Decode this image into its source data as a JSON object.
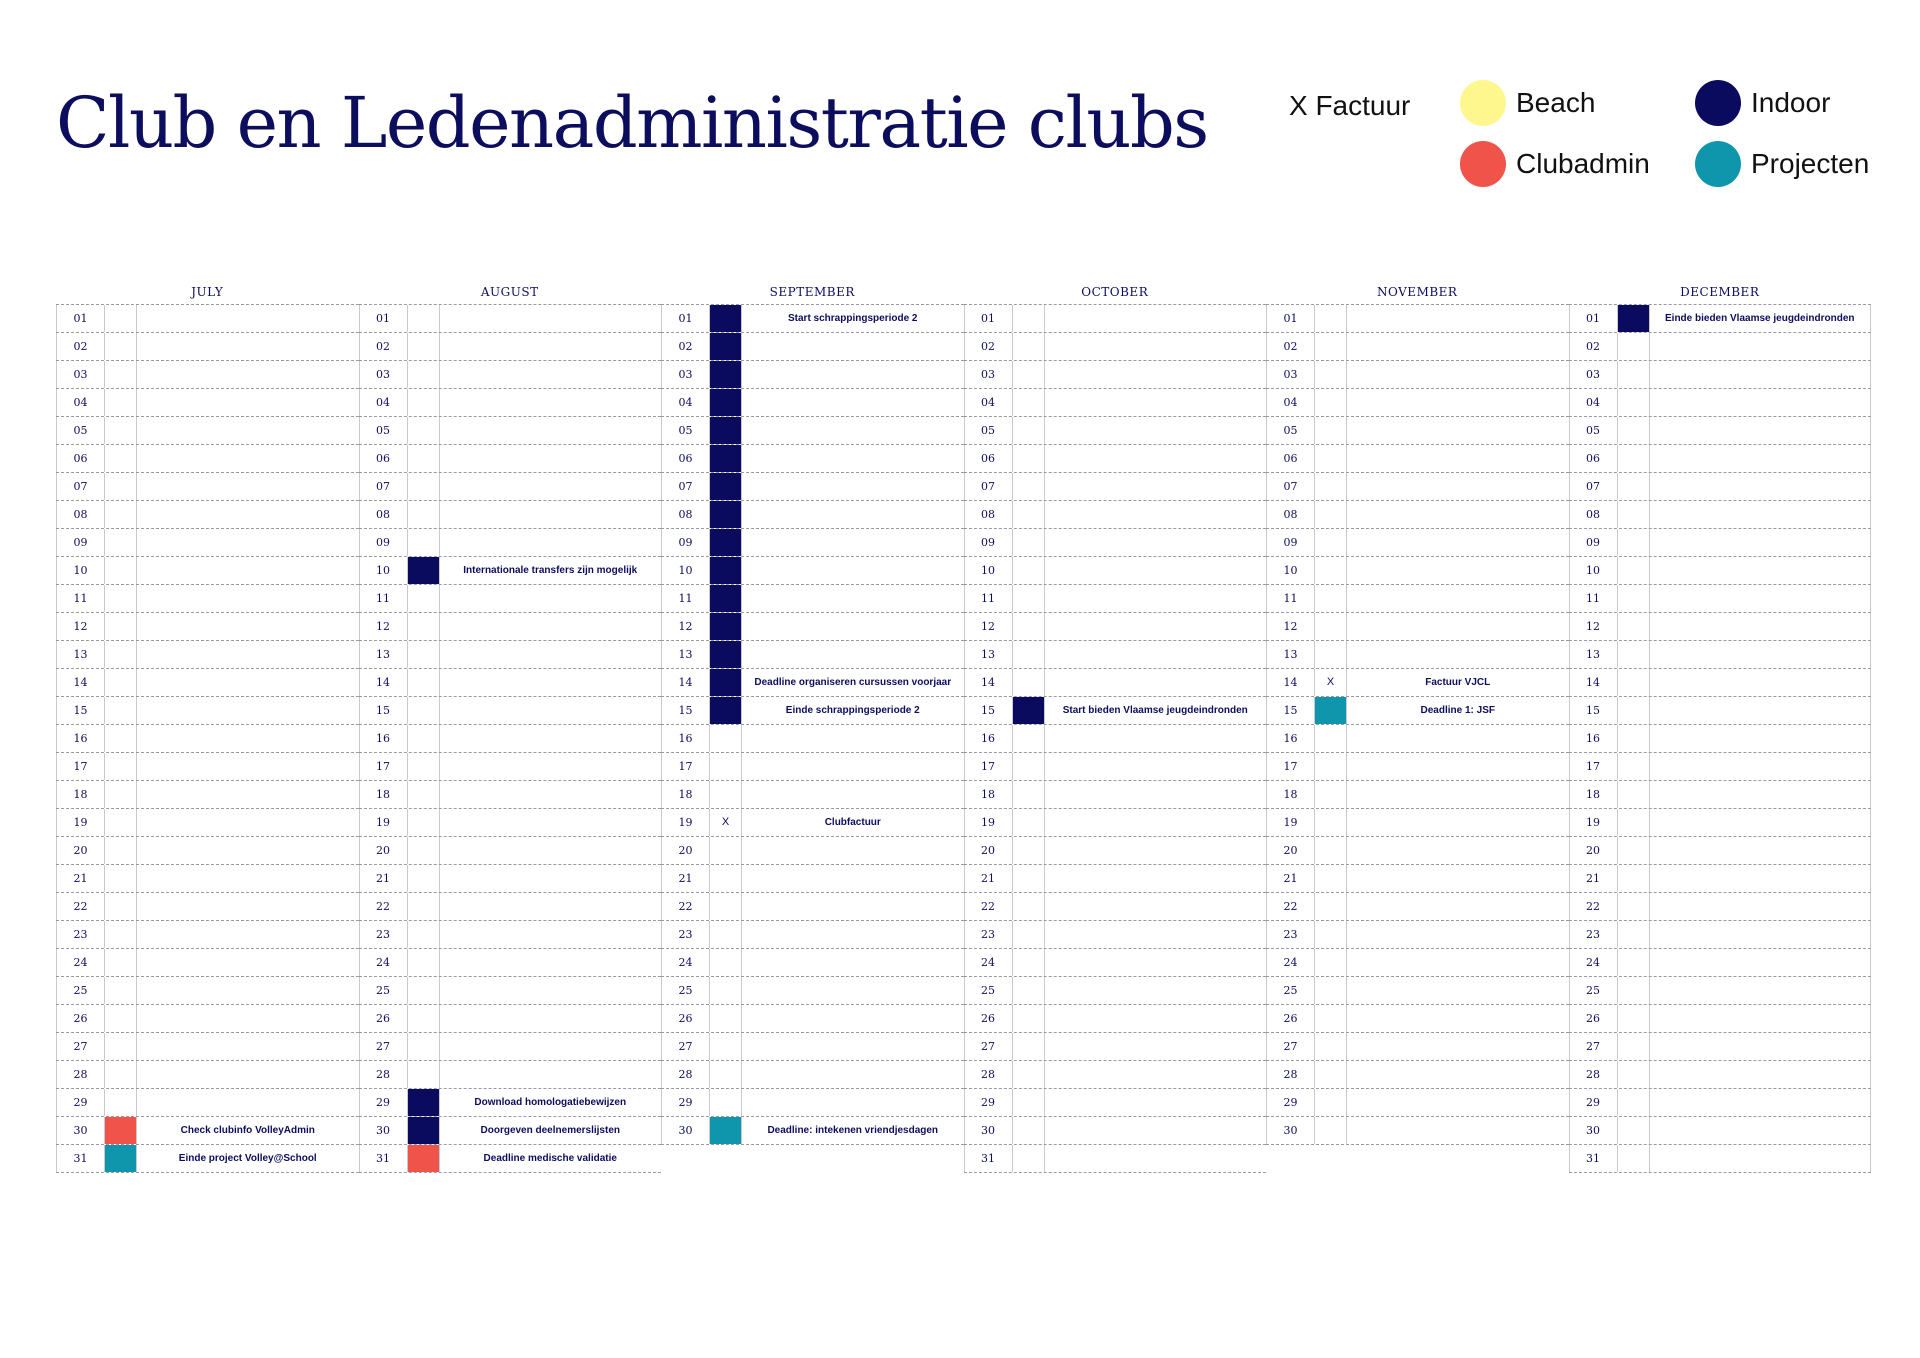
{
  "title": "Club en Ledenadministratie clubs",
  "legend": {
    "factuur": "X Factuur",
    "items": [
      {
        "label": "Beach",
        "color": "#fdf78e"
      },
      {
        "label": "Indoor",
        "color": "#0a0a5e"
      },
      {
        "label": "Clubadmin",
        "color": "#ef5349"
      },
      {
        "label": "Projecten",
        "color": "#0f96ad"
      }
    ]
  },
  "colors": {
    "indoor": "#0a0a5e",
    "clubadmin": "#ef5349",
    "projecten": "#0f96ad",
    "beach": "#fdf78e"
  },
  "months": [
    {
      "name": "JULY",
      "days": 31,
      "events": {
        "30": {
          "text": "Check clubinfo VolleyAdmin",
          "color": "clubadmin"
        },
        "31": {
          "text": "Einde project Volley@School",
          "color": "projecten"
        }
      }
    },
    {
      "name": "AUGUST",
      "days": 31,
      "events": {
        "10": {
          "text": "Internationale transfers zijn mogelijk",
          "color": "indoor"
        },
        "29": {
          "text": "Download homologatiebewijzen",
          "color": "indoor"
        },
        "30": {
          "text": "Doorgeven deelnemerslijsten",
          "color": "indoor"
        },
        "31": {
          "text": "Deadline medische validatie",
          "color": "clubadmin"
        }
      }
    },
    {
      "name": "SEPTEMBER",
      "days": 30,
      "bars": [
        {
          "from": 1,
          "to": 15,
          "color": "indoor"
        }
      ],
      "events": {
        "1": {
          "text": "Start schrappingsperiode 2"
        },
        "14": {
          "text": "Deadline organiseren cursussen voorjaar"
        },
        "15": {
          "text": "Einde schrappingsperiode 2"
        },
        "19": {
          "text": "Clubfactuur",
          "mark": "X"
        },
        "30": {
          "text": "Deadline: intekenen vriendjesdagen",
          "color": "projecten"
        }
      }
    },
    {
      "name": "OCTOBER",
      "days": 31,
      "events": {
        "15": {
          "text": "Start bieden Vlaamse jeugdeindronden",
          "color": "indoor"
        }
      }
    },
    {
      "name": "NOVEMBER",
      "days": 30,
      "events": {
        "14": {
          "text": "Factuur VJCL",
          "mark": "X"
        },
        "15": {
          "text": "Deadline 1: JSF",
          "color": "projecten"
        }
      }
    },
    {
      "name": "DECEMBER",
      "days": 31,
      "events": {
        "1": {
          "text": "Einde bieden Vlaamse jeugdeindronden",
          "color": "indoor"
        }
      }
    }
  ]
}
